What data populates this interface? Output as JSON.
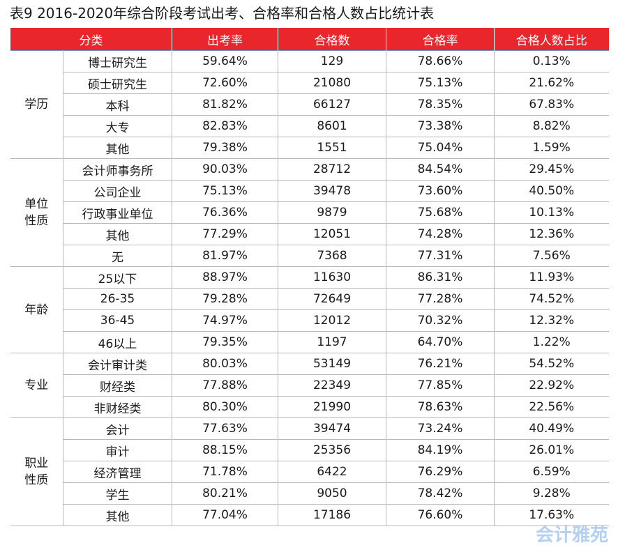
{
  "title": "表9  2016-2020年综合阶段考试出考、合格率和合格人数占比统计表",
  "table": {
    "header": [
      "分类",
      "出考率",
      "合格数",
      "合格率",
      "合格人数占比"
    ],
    "groups": [
      {
        "label": "学历",
        "rows": [
          [
            "博士研究生",
            "59.64%",
            "129",
            "78.66%",
            "0.13%"
          ],
          [
            "硕士研究生",
            "72.60%",
            "21080",
            "75.13%",
            "21.62%"
          ],
          [
            "本科",
            "81.82%",
            "66127",
            "78.35%",
            "67.83%"
          ],
          [
            "大专",
            "82.83%",
            "8601",
            "73.38%",
            "8.82%"
          ],
          [
            "其他",
            "79.38%",
            "1551",
            "75.04%",
            "1.59%"
          ]
        ]
      },
      {
        "label": "单位性质",
        "rows": [
          [
            "会计师事务所",
            "90.03%",
            "28712",
            "84.54%",
            "29.45%"
          ],
          [
            "公司企业",
            "75.13%",
            "39478",
            "73.60%",
            "40.50%"
          ],
          [
            "行政事业单位",
            "76.36%",
            "9879",
            "75.68%",
            "10.13%"
          ],
          [
            "其他",
            "77.29%",
            "12051",
            "74.28%",
            "12.36%"
          ],
          [
            "无",
            "81.97%",
            "7368",
            "77.31%",
            "7.56%"
          ]
        ]
      },
      {
        "label": "年龄",
        "rows": [
          [
            "25以下",
            "88.97%",
            "11630",
            "86.31%",
            "11.93%"
          ],
          [
            "26-35",
            "79.28%",
            "72649",
            "77.28%",
            "74.52%"
          ],
          [
            "36-45",
            "74.97%",
            "12012",
            "70.32%",
            "12.32%"
          ],
          [
            "46以上",
            "79.35%",
            "1197",
            "64.70%",
            "1.22%"
          ]
        ]
      },
      {
        "label": "专业",
        "rows": [
          [
            "会计审计类",
            "80.03%",
            "53149",
            "76.21%",
            "54.52%"
          ],
          [
            "财经类",
            "77.88%",
            "22349",
            "77.85%",
            "22.92%"
          ],
          [
            "非财经类",
            "80.30%",
            "21990",
            "78.63%",
            "22.56%"
          ]
        ]
      },
      {
        "label": "职业性质",
        "rows": [
          [
            "会计",
            "77.63%",
            "39474",
            "73.24%",
            "40.49%"
          ],
          [
            "审计",
            "88.15%",
            "25356",
            "84.19%",
            "26.01%"
          ],
          [
            "经济管理",
            "71.78%",
            "6422",
            "76.29%",
            "6.59%"
          ],
          [
            "学生",
            "80.21%",
            "9050",
            "78.42%",
            "9.28%"
          ],
          [
            "其他",
            "77.04%",
            "17186",
            "76.60%",
            "17.63%"
          ]
        ]
      }
    ]
  },
  "watermark": "会计雅苑"
}
